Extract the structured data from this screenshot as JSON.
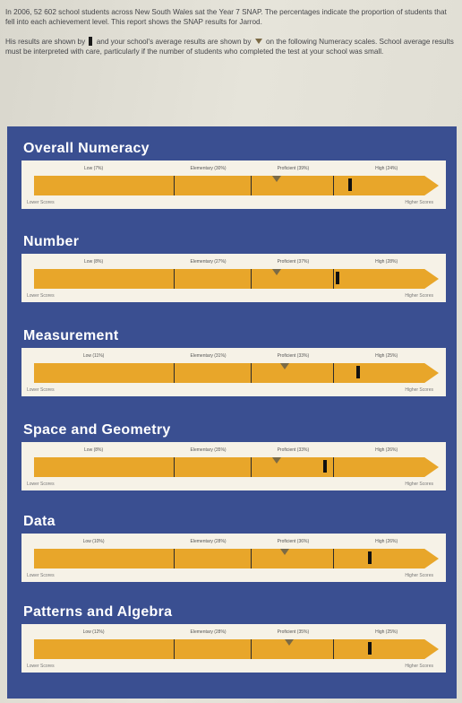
{
  "intro": {
    "paragraph1": "In 2006, 52 602 school students across New South Wales sat the Year 7 SNAP. The percentages indicate the proportion of students that fell into each achievement level. This report shows the SNAP results for Jarrod.",
    "paragraph2_a": "His results are shown by",
    "paragraph2_b": "and your school's average results are shown by",
    "paragraph2_c": "on the following Numeracy scales. School average results must be interpreted with care, particularly if the number of students who completed the test at your school was small."
  },
  "scale_labels": {
    "lower": "Lower Scores",
    "higher": "Higher Scores"
  },
  "colors": {
    "panel": "#3a4f91",
    "arrow": "#e8a62a",
    "strip": "#f6f2e7",
    "school_marker": "#7b6a45",
    "student_marker": "#111111"
  },
  "sections": [
    {
      "title": "Overall Numeracy",
      "levels": [
        "Low (7%)",
        "Elementary (30%)",
        "Proficient (39%)",
        "High (24%)"
      ],
      "student_position": 0.78,
      "school_position": 0.6
    },
    {
      "title": "Number",
      "levels": [
        "Low (8%)",
        "Elementary (27%)",
        "Proficient (37%)",
        "High (28%)"
      ],
      "student_position": 0.75,
      "school_position": 0.6
    },
    {
      "title": "Measurement",
      "levels": [
        "Low (11%)",
        "Elementary (31%)",
        "Proficient (33%)",
        "High (25%)"
      ],
      "student_position": 0.8,
      "school_position": 0.62
    },
    {
      "title": "Space and Geometry",
      "levels": [
        "Low (8%)",
        "Elementary (35%)",
        "Proficient (33%)",
        "High (26%)"
      ],
      "student_position": 0.72,
      "school_position": 0.6
    },
    {
      "title": "Data",
      "levels": [
        "Low (10%)",
        "Elementary (28%)",
        "Proficient (36%)",
        "High (26%)"
      ],
      "student_position": 0.83,
      "school_position": 0.62
    },
    {
      "title": "Patterns and Algebra",
      "levels": [
        "Low (12%)",
        "Elementary (28%)",
        "Proficient (35%)",
        "High (25%)"
      ],
      "student_position": 0.83,
      "school_position": 0.63
    }
  ]
}
